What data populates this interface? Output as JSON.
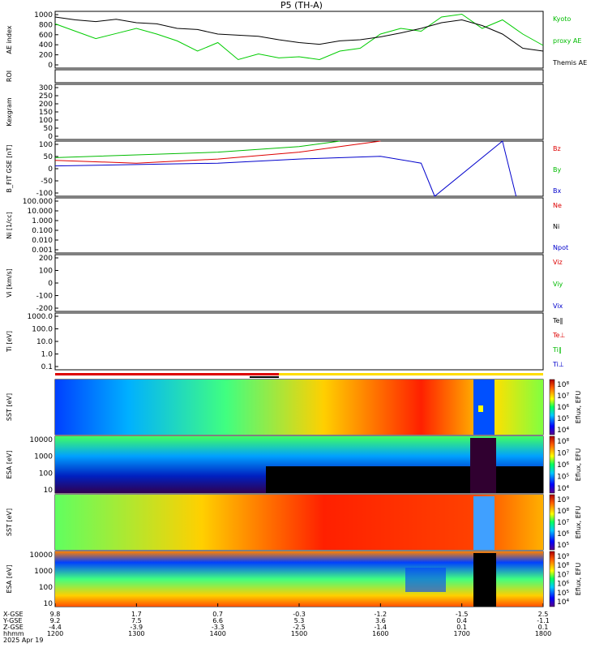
{
  "title": "P5 (TH-A)",
  "chart_data": [
    {
      "type": "line",
      "id": "ae",
      "ylabel": "AE index",
      "ylim": [
        0,
        1000
      ],
      "yticks": [
        "1000",
        "800",
        "600",
        "400",
        "200",
        "0"
      ],
      "series": [
        {
          "name": "Kyoto proxy AE",
          "color": "#00cc00",
          "x": [
            1200,
            1215,
            1230,
            1245,
            1300,
            1315,
            1330,
            1345,
            1400,
            1415,
            1430,
            1445,
            1500,
            1515,
            1530,
            1545,
            1600,
            1615,
            1630,
            1645,
            1700,
            1715,
            1730,
            1745,
            1800
          ],
          "values": [
            780,
            650,
            520,
            610,
            700,
            600,
            480,
            300,
            450,
            150,
            250,
            180,
            200,
            150,
            300,
            350,
            600,
            700,
            650,
            900,
            950,
            700,
            850,
            600,
            400
          ]
        },
        {
          "name": "Themis AE",
          "color": "#000000",
          "x": [
            1200,
            1215,
            1230,
            1245,
            1300,
            1315,
            1330,
            1345,
            1400,
            1415,
            1430,
            1445,
            1500,
            1515,
            1530,
            1545,
            1600,
            1615,
            1630,
            1645,
            1700,
            1715,
            1730,
            1745,
            1800
          ],
          "values": [
            900,
            850,
            820,
            860,
            800,
            780,
            700,
            680,
            600,
            580,
            560,
            500,
            450,
            420,
            480,
            500,
            550,
            620,
            700,
            800,
            850,
            750,
            600,
            350,
            300
          ]
        }
      ],
      "right_labels": [
        "Kyoto",
        "proxy AE",
        "Themis AE"
      ]
    },
    {
      "type": "timeline",
      "id": "roi",
      "ylabel": "ROI"
    },
    {
      "type": "line",
      "id": "kp",
      "ylabel": "Kexgram",
      "ylim": [
        0,
        300
      ],
      "yticks": [
        "300",
        "250",
        "200",
        "150",
        "100",
        "50",
        "0"
      ],
      "series": []
    },
    {
      "type": "line",
      "id": "bfield",
      "ylabel": "B_FIT GSE [nT]",
      "ylim": [
        -100,
        100
      ],
      "yticks": [
        "100",
        "50",
        "0",
        "-50",
        "-100"
      ],
      "series": [
        {
          "name": "Bz",
          "color": "#dd0000",
          "x": [
            1200,
            1300,
            1400,
            1500,
            1530,
            1600
          ],
          "values": [
            30,
            20,
            35,
            60,
            80,
            120
          ]
        },
        {
          "name": "By",
          "color": "#00bb00",
          "x": [
            1200,
            1300,
            1400,
            1500,
            1530
          ],
          "values": [
            40,
            50,
            60,
            80,
            110
          ]
        },
        {
          "name": "Bx",
          "color": "#0000cc",
          "x": [
            1200,
            1300,
            1400,
            1500,
            1600,
            1630,
            1640,
            1730,
            1740
          ],
          "values": [
            10,
            15,
            20,
            35,
            45,
            20,
            -100,
            120,
            -100
          ]
        }
      ],
      "right_labels": [
        "Bz",
        "By",
        "Bx"
      ]
    },
    {
      "type": "line",
      "id": "density",
      "ylabel": "Ni [1/cc]",
      "scale": "log",
      "yticks": [
        "100.000",
        "10.000",
        "1.000",
        "0.100",
        "0.010",
        "0.001"
      ],
      "series": [
        {
          "name": "Ne",
          "color": "#dd0000"
        },
        {
          "name": "Ni",
          "color": "#000000"
        },
        {
          "name": "Npot",
          "color": "#0000cc"
        }
      ],
      "right_labels": [
        "Ne",
        "Ni",
        "Npot"
      ]
    },
    {
      "type": "line",
      "id": "velocity",
      "ylabel": "Vi [km/s]",
      "ylim": [
        -300,
        300
      ],
      "yticks": [
        "200",
        "100",
        "0",
        "-100",
        "-200"
      ],
      "right_labels": [
        "Viz",
        "Viy",
        "Vix"
      ]
    },
    {
      "type": "line",
      "id": "temperature",
      "ylabel": "Ti [eV]",
      "scale": "log",
      "yticks": [
        "1000.0",
        "100.0",
        "10.0",
        "1.0",
        "0.1"
      ],
      "right_labels": [
        "Te‖",
        "Te⊥",
        "Ti‖",
        "Ti⊥"
      ]
    },
    {
      "type": "heatmap",
      "id": "sst_i",
      "ylabel": "SST [eV]",
      "scale": "log",
      "colorbar_label": "Eflux, EFU",
      "colorbar_ticks": [
        "10⁸",
        "10⁷",
        "10⁶",
        "10⁵",
        "10⁴"
      ]
    },
    {
      "type": "heatmap",
      "id": "esa_i",
      "ylabel": "ESA [eV]",
      "scale": "log",
      "yticks": [
        "10000",
        "1000",
        "100",
        "10"
      ],
      "colorbar_label": "Eflux, EFU",
      "colorbar_ticks": [
        "10⁸",
        "10⁷",
        "10⁶",
        "10⁵",
        "10⁴"
      ]
    },
    {
      "type": "heatmap",
      "id": "sst_e",
      "ylabel": "SST [eV]",
      "scale": "log",
      "colorbar_label": "Eflux, EFU",
      "colorbar_ticks": [
        "10⁹",
        "10⁸",
        "10⁷",
        "10⁶",
        "10⁵"
      ]
    },
    {
      "type": "heatmap",
      "id": "esa_e",
      "ylabel": "ESA [eV]",
      "scale": "log",
      "yticks": [
        "10000",
        "1000",
        "100",
        "10"
      ],
      "colorbar_label": "Eflux, EFU",
      "colorbar_ticks": [
        "10⁹",
        "10⁸",
        "10⁷",
        "10⁶",
        "10⁵",
        "10⁴"
      ]
    }
  ],
  "x_axis": {
    "row_labels": [
      "X-GSE",
      "Y-GSE",
      "Z-GSE",
      "hhmm",
      "2025 Apr 19"
    ],
    "columns": [
      {
        "x": "9.8",
        "y": "9.2",
        "z": "-4.4",
        "t": "1200"
      },
      {
        "x": "1.7",
        "y": "7.5",
        "z": "-3.9",
        "t": "1300"
      },
      {
        "x": "0.7",
        "y": "6.6",
        "z": "-3.3",
        "t": "1400"
      },
      {
        "x": "-0.3",
        "y": "5.3",
        "z": "-2.5",
        "t": "1500"
      },
      {
        "x": "-1.2",
        "y": "3.6",
        "z": "-1.4",
        "t": "1600"
      },
      {
        "x": "-1.5",
        "y": "0.4",
        "z": "0.1",
        "t": "1700"
      },
      {
        "x": "2.5",
        "y": "-1.1",
        "z": "0.1",
        "t": "1800"
      }
    ]
  }
}
